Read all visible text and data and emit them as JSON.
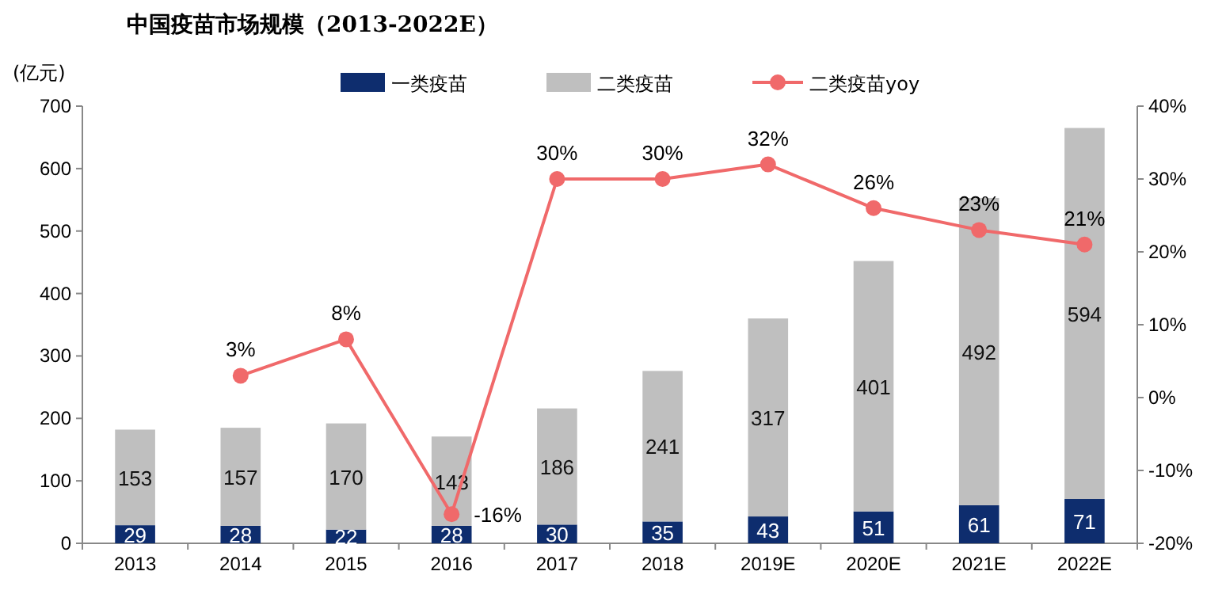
{
  "chart_data": {
    "type": "bar",
    "title": "中国疫苗市场规模（2013-2022E）",
    "ylabel": "(亿元)",
    "stacked": true,
    "legend": "top",
    "data_labels": true,
    "categories": [
      "2013",
      "2014",
      "2015",
      "2016",
      "2017",
      "2018",
      "2019E",
      "2020E",
      "2021E",
      "2022E"
    ],
    "series": [
      {
        "name": "一类疫苗",
        "color": "#0e2d6e",
        "values": [
          29,
          28,
          22,
          28,
          30,
          35,
          43,
          51,
          61,
          71
        ]
      },
      {
        "name": "二类疫苗",
        "color": "#bfbfbf",
        "values": [
          153,
          157,
          170,
          143,
          186,
          241,
          317,
          401,
          492,
          594
        ]
      },
      {
        "name": "二类疫苗yoy",
        "type": "line",
        "axis": "y2",
        "color": "#f0696a",
        "marker": "circle",
        "value_labels": [
          null,
          "3%",
          "8%",
          "-16%",
          "30%",
          "30%",
          "32%",
          "26%",
          "23%",
          "21%"
        ],
        "values": [
          null,
          3,
          8,
          -16,
          30,
          30,
          32,
          26,
          23,
          21
        ]
      }
    ],
    "ylim": [
      0,
      700
    ],
    "yticks": [
      0,
      100,
      200,
      300,
      400,
      500,
      600,
      700
    ],
    "y2lim": [
      -20,
      40
    ],
    "y2ticks": [
      {
        "value": -20,
        "label": "-20%"
      },
      {
        "value": -10,
        "label": "-10%"
      },
      {
        "value": 0,
        "label": "0%"
      },
      {
        "value": 10,
        "label": "10%"
      },
      {
        "value": 20,
        "label": "20%"
      },
      {
        "value": 30,
        "label": "30%"
      },
      {
        "value": 40,
        "label": "40%"
      }
    ]
  }
}
